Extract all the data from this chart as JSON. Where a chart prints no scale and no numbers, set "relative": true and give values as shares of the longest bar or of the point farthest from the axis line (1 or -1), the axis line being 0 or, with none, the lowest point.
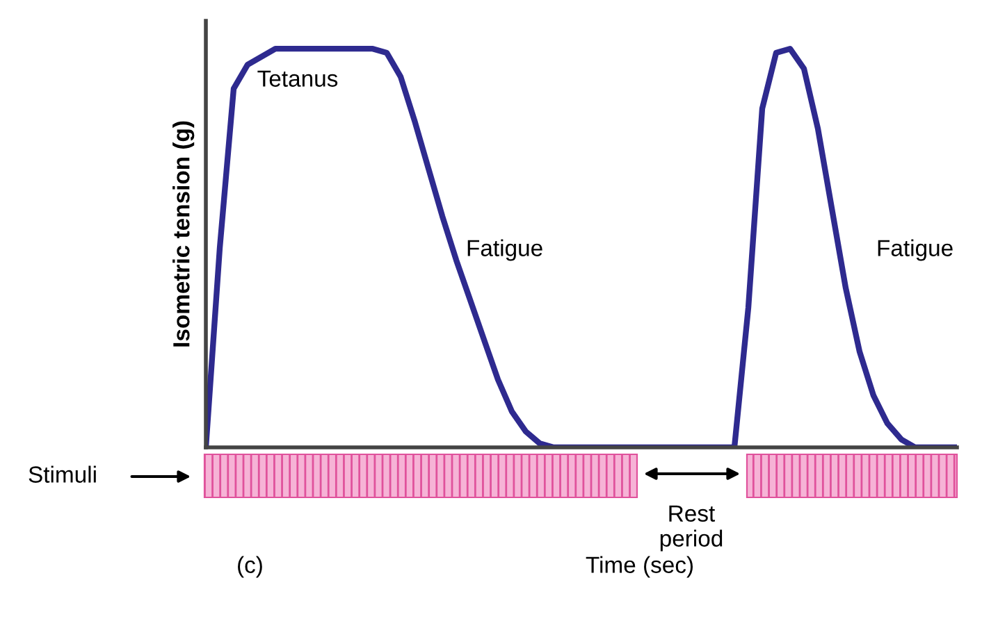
{
  "chart_data": {
    "type": "line",
    "relative": true,
    "ylabel": "Isometric tension (g)",
    "categories": [
      null,
      null,
      null,
      null,
      null,
      null,
      null,
      null,
      null,
      null,
      null,
      null,
      null,
      null,
      null,
      null,
      null,
      null,
      null,
      null,
      null,
      null,
      null,
      null,
      null,
      null,
      null,
      null,
      null,
      null,
      null,
      null,
      null,
      null,
      null,
      null,
      null,
      null,
      null,
      null,
      null,
      null,
      null,
      null,
      null,
      null,
      null,
      null,
      null,
      null,
      null,
      null,
      null,
      null,
      null
    ],
    "series": [
      {
        "color": "#2e2a8f",
        "values": [
          0,
          0.5,
          0.9,
          0.96,
          0.98,
          1,
          1,
          1,
          1,
          1,
          1,
          1,
          1,
          0.99,
          0.93,
          0.82,
          0.7,
          0.58,
          0.47,
          0.37,
          0.27,
          0.17,
          0.09,
          0.04,
          0.01,
          0,
          0,
          0,
          0,
          0,
          0,
          0,
          0,
          0,
          0,
          0,
          0,
          0,
          0,
          0.35,
          0.85,
          0.99,
          1,
          0.95,
          0.8,
          0.6,
          0.4,
          0.24,
          0.13,
          0.06,
          0.02,
          0,
          0,
          0,
          0
        ]
      }
    ],
    "annotations": [
      "Tetanus",
      "Fatigue",
      "Fatigue",
      "Rest\nperiod",
      "(c)",
      "Stimuli",
      "Time (sec)"
    ],
    "marker": "none",
    "line_style": "solid",
    "legend": false
  }
}
